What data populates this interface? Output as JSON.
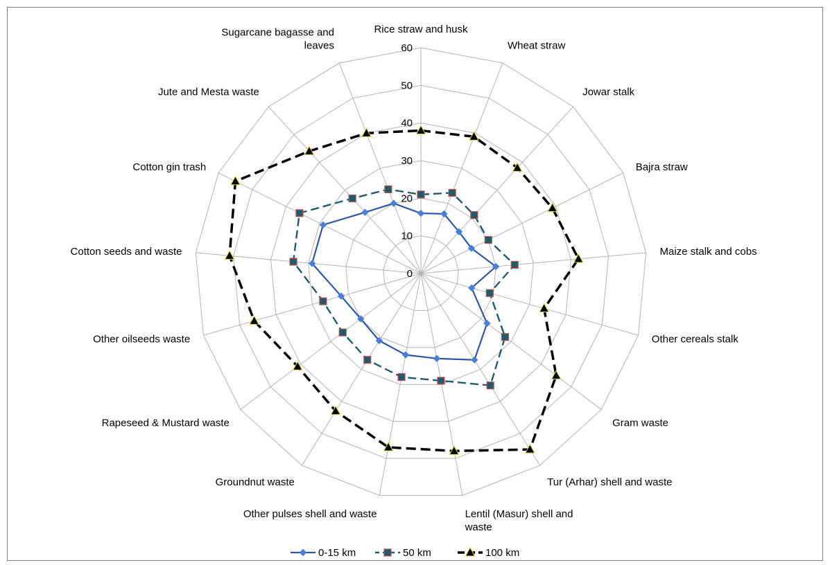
{
  "chart_data": {
    "type": "radar",
    "title": "",
    "axis_categories": [
      [
        "Rice straw and husk"
      ],
      [
        "Wheat straw"
      ],
      [
        "Jowar stalk"
      ],
      [
        "Bajra straw"
      ],
      [
        "Maize stalk and cobs"
      ],
      [
        "Other cereals stalk"
      ],
      [
        "Gram waste"
      ],
      [
        "Tur (Arhar) shell and waste"
      ],
      [
        "Lentil (Masur) shell and",
        "waste"
      ],
      [
        "Other pulses shell and waste"
      ],
      [
        "Groundnut waste"
      ],
      [
        "Rapeseed & Mustard waste"
      ],
      [
        "Other oilseeds waste"
      ],
      [
        "Cotton seeds and waste"
      ],
      [
        "Cotton gin trash"
      ],
      [
        "Jute and Mesta waste"
      ],
      [
        "Sugarcane bagasse and",
        "leaves"
      ]
    ],
    "r_ticks": [
      "0",
      "10",
      "20",
      "30",
      "40",
      "50",
      "60"
    ],
    "r_range": [
      0,
      60
    ],
    "grid": true,
    "legend_position": "bottom",
    "series": [
      {
        "name": "0-15 km",
        "color": "#2f57a6",
        "marker": "diamond",
        "line": "solid",
        "values": [
          16,
          17,
          15,
          15,
          20,
          14,
          22,
          27,
          23,
          22,
          21,
          20,
          22,
          29,
          29,
          22,
          20
        ]
      },
      {
        "name": "50 km",
        "color": "#1f5b6b",
        "marker": "square",
        "line": "dashed",
        "values": [
          21,
          23,
          21,
          20,
          25,
          19,
          28,
          35,
          29,
          28,
          27,
          26,
          27,
          34,
          36,
          27,
          24
        ]
      },
      {
        "name": "100 km",
        "color": "#000000",
        "marker": "triangle",
        "line": "dashed",
        "values": [
          38,
          39,
          38,
          39,
          42,
          34,
          45,
          55,
          48,
          47,
          43,
          41,
          46,
          51,
          55,
          44,
          40
        ]
      }
    ]
  }
}
